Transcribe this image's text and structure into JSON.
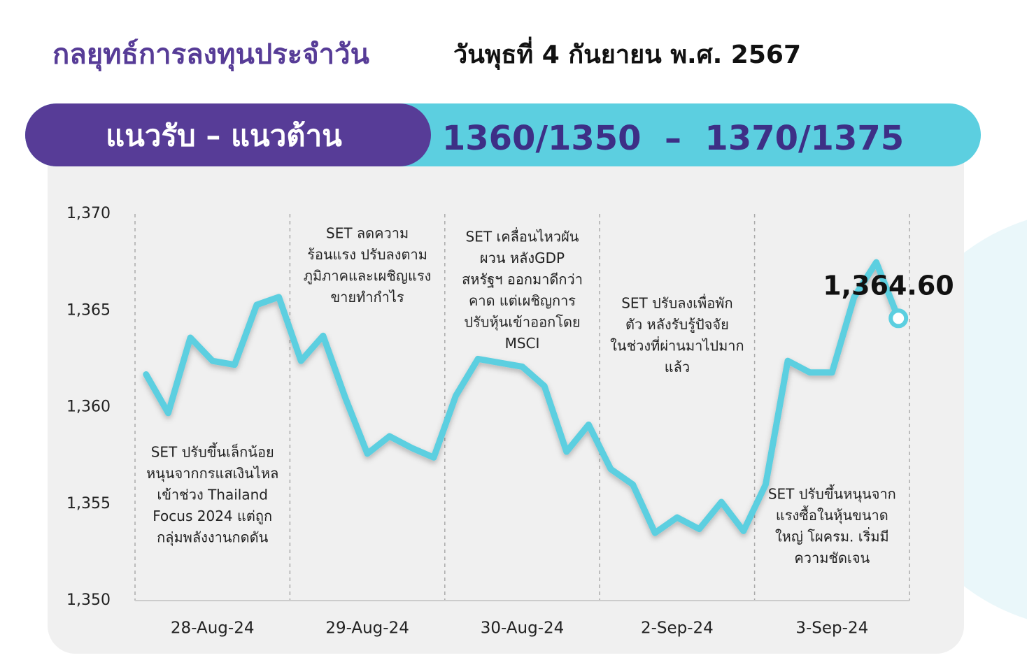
{
  "header": {
    "title": "กลยุทธ์การลงทุนประจำวัน",
    "date": "วันพุธที่ 4 กันยายน พ.ศ. 2567"
  },
  "banner": {
    "label": "แนวรับ – แนวต้าน",
    "levels": "1360/1350  –  1370/1375"
  },
  "chart_data": {
    "type": "line",
    "color": "#5ccfe0",
    "categories": [
      "28-Aug-24",
      "29-Aug-24",
      "30-Aug-24",
      "2-Sep-24",
      "3-Sep-24"
    ],
    "values": [
      [
        1361.7,
        1359.7,
        1363.6,
        1362.4,
        1362.2,
        1365.3,
        1365.7
      ],
      [
        1362.4,
        1363.7,
        1360.5,
        1357.6,
        1358.5,
        1357.9,
        1357.4
      ],
      [
        1360.6,
        1362.5,
        1362.3,
        1362.1,
        1361.1,
        1357.7,
        1359.1
      ],
      [
        1356.8,
        1356.0,
        1353.5,
        1354.3,
        1353.7,
        1355.1,
        1353.6
      ],
      [
        1356.0,
        1362.4,
        1361.8,
        1361.8,
        1365.7,
        1367.5,
        1364.6
      ]
    ],
    "end_label": "1,364.60",
    "ylim": [
      1350,
      1370
    ],
    "yticks": [
      {
        "value": 1350,
        "label": "1,350"
      },
      {
        "value": 1355,
        "label": "1,355"
      },
      {
        "value": 1360,
        "label": "1,360"
      },
      {
        "value": 1365,
        "label": "1,365"
      },
      {
        "value": 1370,
        "label": "1,370"
      }
    ],
    "annotations": [
      [
        "SET ปรับขึ้นเล็กน้อย",
        "หนุนจากกรแสเงินไหล",
        "เข้าช่วง Thailand",
        "Focus 2024 แต่ถูก",
        "กลุ่มพลังงานกดดัน"
      ],
      [
        "SET ลดความ",
        "ร้อนแรง ปรับลงตาม",
        "ภูมิภาคและเผชิญแรง",
        "ขายทำกำไร"
      ],
      [
        "SET เคลื่อนไหวผัน",
        "ผวน หลังGDP",
        "สหรัฐฯ ออกมาดีกว่า",
        "คาด แต่เผชิญการ",
        "ปรับหุ้นเข้าออกโดย",
        "MSCI"
      ],
      [
        "SET ปรับลงเพื่อพัก",
        "ตัว หลังรับรู้ปัจจัย",
        "ในช่วงที่ผ่านมาไปมาก",
        "แล้ว"
      ],
      [
        "SET ปรับขึ้นหนุนจาก",
        "แรงซื้อในหุ้นขนาด",
        "ใหญ่ โผครม. เริ่มมี",
        "ความชัดเจน"
      ]
    ]
  }
}
